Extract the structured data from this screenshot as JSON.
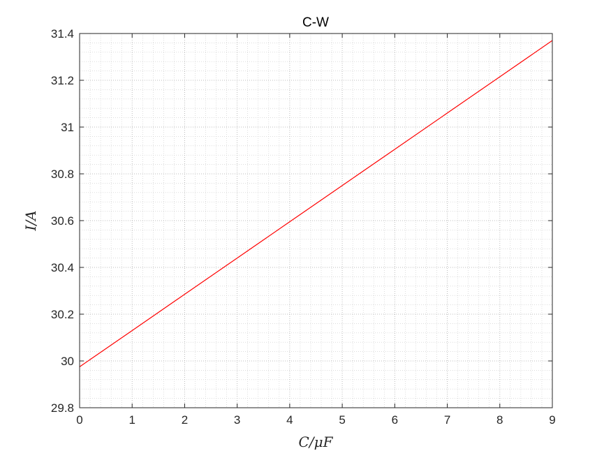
{
  "chart_data": {
    "type": "line",
    "title": "C-W",
    "xlabel": "C/μF",
    "ylabel": "I/A",
    "xlim": [
      0,
      9
    ],
    "ylim": [
      29.8,
      31.4
    ],
    "x_ticks": [
      "0",
      "1",
      "2",
      "3",
      "4",
      "5",
      "6",
      "7",
      "8",
      "9"
    ],
    "y_ticks": [
      "29.8",
      "30",
      "30.2",
      "30.4",
      "30.6",
      "30.8",
      "31",
      "31.2",
      "31.4"
    ],
    "grid": true,
    "minor_grid": true,
    "series": [
      {
        "color": "#ff0000",
        "x": [
          0,
          1,
          2,
          3,
          4,
          5,
          6,
          7,
          8,
          9
        ],
        "y": [
          29.975,
          30.13,
          30.285,
          30.44,
          30.595,
          30.75,
          30.905,
          31.06,
          31.215,
          31.37
        ]
      }
    ]
  }
}
